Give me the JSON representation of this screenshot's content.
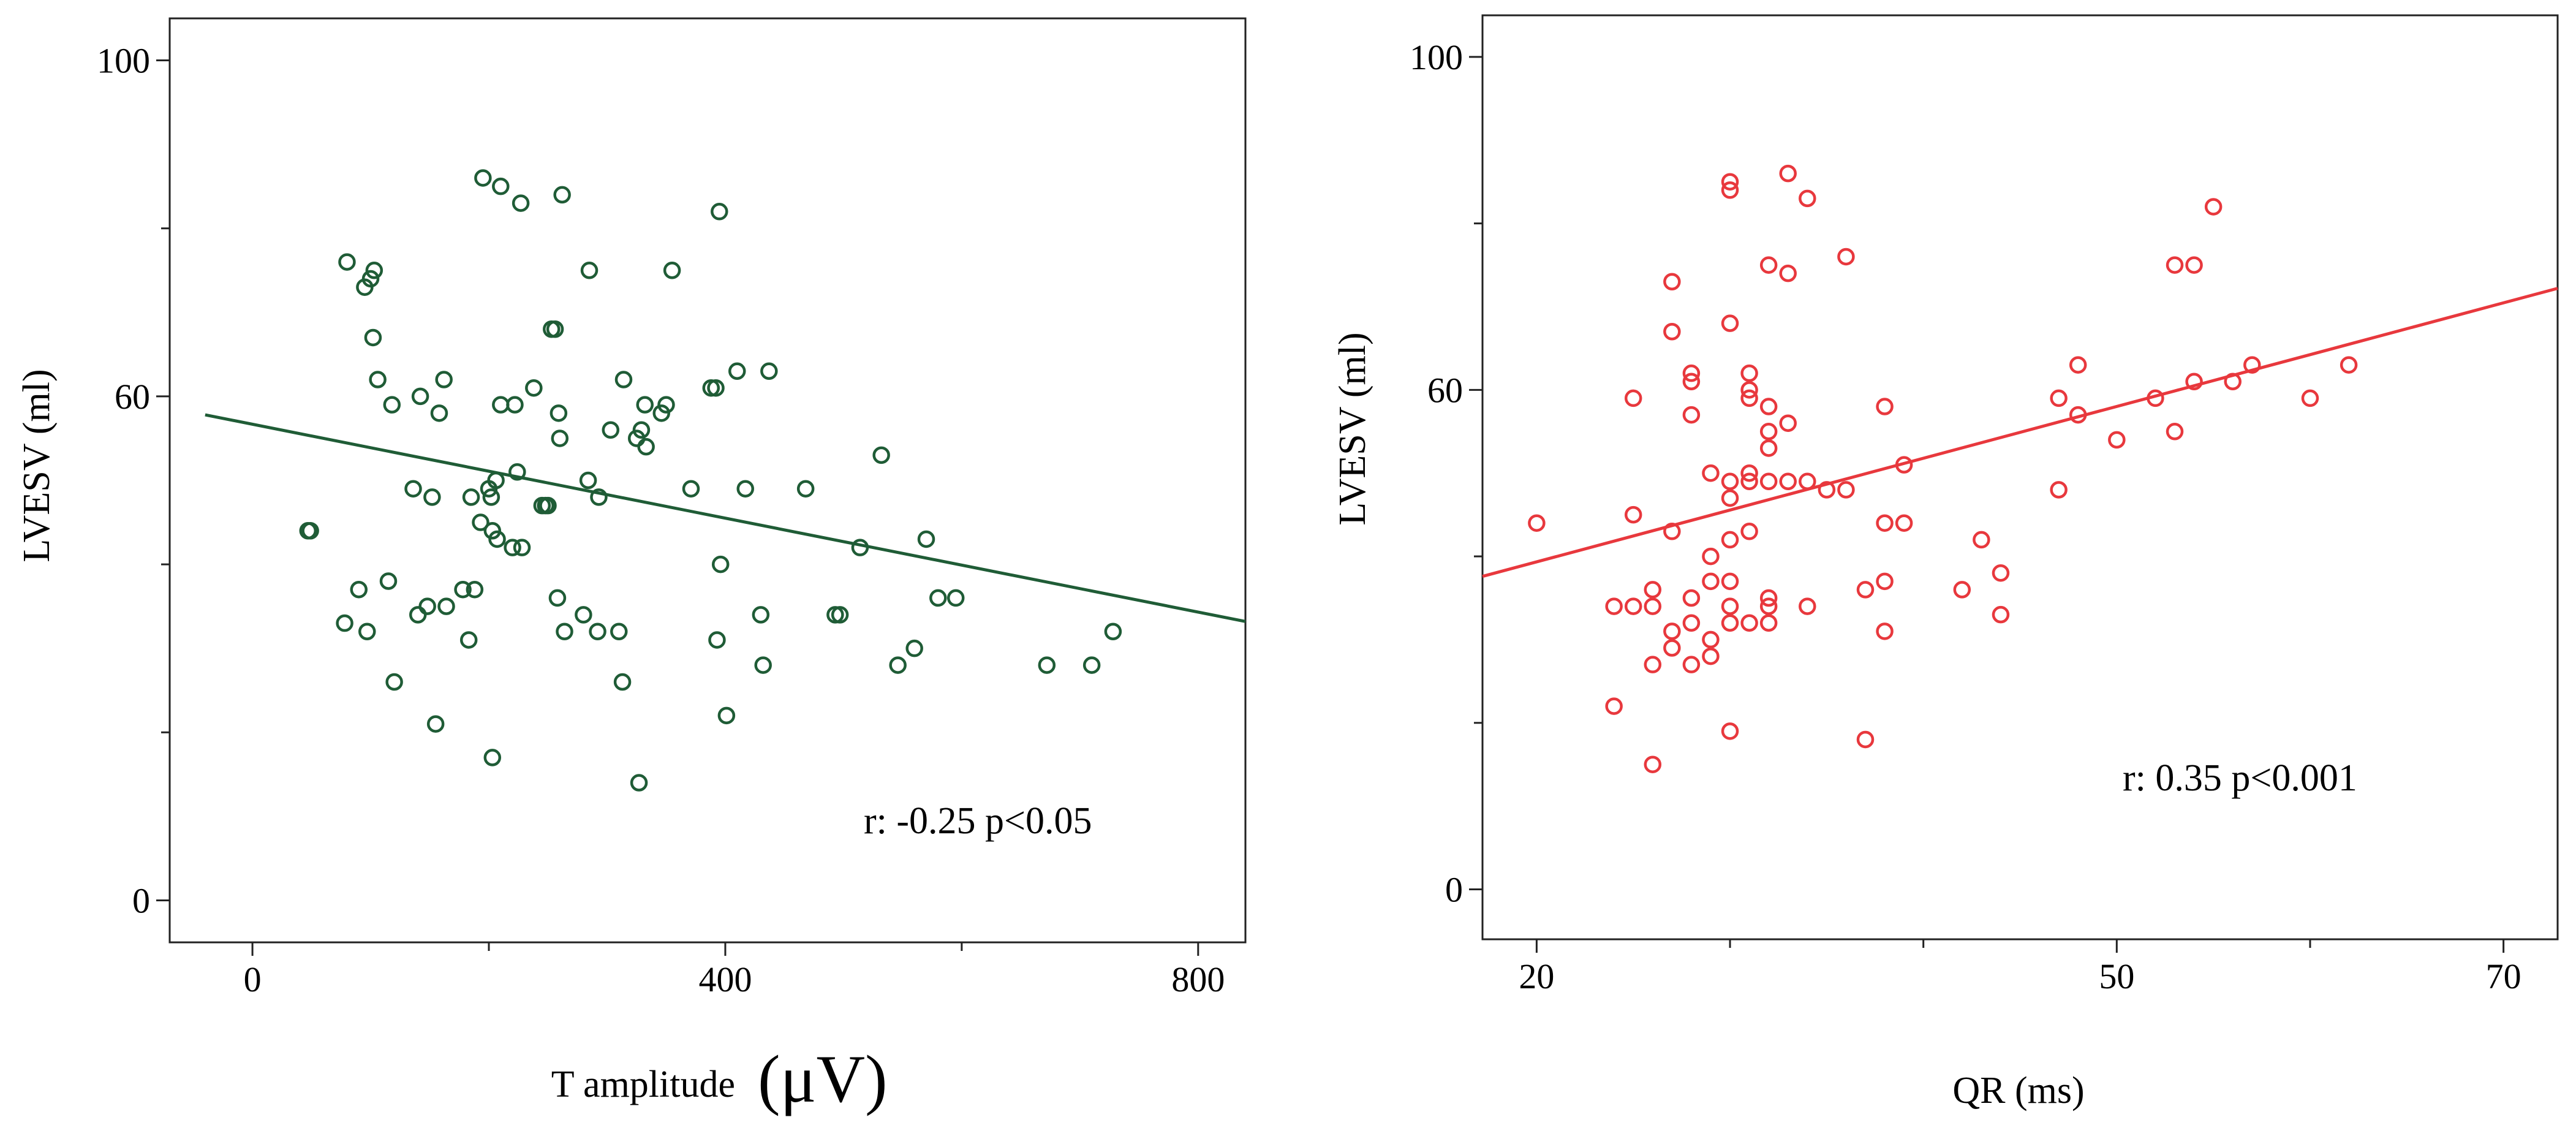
{
  "chart_data": [
    {
      "type": "scatter",
      "title": "",
      "xlabel": "T amplitude",
      "xlabel_unit": "(μV)",
      "ylabel": "LVESV (ml)",
      "xlim": [
        -70,
        840
      ],
      "ylim": [
        -5,
        105
      ],
      "x_ticks": [
        0,
        400,
        800
      ],
      "x_minor_ticks": [
        200,
        600
      ],
      "y_ticks": [
        0,
        60,
        100
      ],
      "y_minor_ticks": [
        20,
        40,
        80
      ],
      "point_color": "#1f5c36",
      "line_color": "#1f5c36",
      "annotation": "r: -0.25  p<0.05",
      "regression": {
        "x": [
          -40,
          840
        ],
        "y": [
          57.8,
          33.2
        ]
      },
      "points": [
        [
          47,
          44
        ],
        [
          49,
          44
        ],
        [
          80,
          76
        ],
        [
          95,
          73
        ],
        [
          100,
          74
        ],
        [
          103,
          75
        ],
        [
          102,
          67
        ],
        [
          106,
          62
        ],
        [
          78,
          33
        ],
        [
          90,
          37
        ],
        [
          97,
          32
        ],
        [
          115,
          38
        ],
        [
          118,
          59
        ],
        [
          120,
          26
        ],
        [
          136,
          49
        ],
        [
          140,
          34
        ],
        [
          142,
          60
        ],
        [
          148,
          35
        ],
        [
          152,
          48
        ],
        [
          155,
          21
        ],
        [
          158,
          58
        ],
        [
          162,
          62
        ],
        [
          164,
          35
        ],
        [
          178,
          37
        ],
        [
          183,
          31
        ],
        [
          185,
          48
        ],
        [
          188,
          37
        ],
        [
          193,
          45
        ],
        [
          195,
          86
        ],
        [
          200,
          49
        ],
        [
          202,
          48
        ],
        [
          203,
          17
        ],
        [
          203,
          44
        ],
        [
          206,
          50
        ],
        [
          207,
          43
        ],
        [
          210,
          85
        ],
        [
          210,
          59
        ],
        [
          220,
          42
        ],
        [
          222,
          59
        ],
        [
          224,
          51
        ],
        [
          227,
          83
        ],
        [
          228,
          42
        ],
        [
          238,
          61
        ],
        [
          245,
          47
        ],
        [
          248,
          47
        ],
        [
          250,
          47
        ],
        [
          253,
          68
        ],
        [
          256,
          68
        ],
        [
          258,
          36
        ],
        [
          259,
          58
        ],
        [
          260,
          55
        ],
        [
          262,
          84
        ],
        [
          264,
          32
        ],
        [
          280,
          34
        ],
        [
          284,
          50
        ],
        [
          285,
          75
        ],
        [
          292,
          32
        ],
        [
          293,
          48
        ],
        [
          303,
          56
        ],
        [
          310,
          32
        ],
        [
          313,
          26
        ],
        [
          314,
          62
        ],
        [
          325,
          55
        ],
        [
          327,
          14
        ],
        [
          329,
          56
        ],
        [
          332,
          59
        ],
        [
          333,
          54
        ],
        [
          346,
          58
        ],
        [
          350,
          59
        ],
        [
          355,
          75
        ],
        [
          371,
          49
        ],
        [
          388,
          61
        ],
        [
          392,
          61
        ],
        [
          393,
          31
        ],
        [
          395,
          82
        ],
        [
          396,
          40
        ],
        [
          401,
          22
        ],
        [
          410,
          63
        ],
        [
          417,
          49
        ],
        [
          430,
          34
        ],
        [
          432,
          28
        ],
        [
          437,
          63
        ],
        [
          468,
          49
        ],
        [
          493,
          34
        ],
        [
          497,
          34
        ],
        [
          514,
          42
        ],
        [
          532,
          53
        ],
        [
          546,
          28
        ],
        [
          560,
          30
        ],
        [
          570,
          43
        ],
        [
          580,
          36
        ],
        [
          595,
          36
        ],
        [
          672,
          28
        ],
        [
          710,
          28
        ],
        [
          728,
          32
        ]
      ]
    },
    {
      "type": "scatter",
      "title": "",
      "xlabel": "QR (ms)",
      "ylabel": "LVESV (ml)",
      "xlim": [
        17.2,
        72.8
      ],
      "ylim": [
        -6,
        105
      ],
      "x_ticks": [
        20,
        50,
        70
      ],
      "x_minor_ticks": [
        30,
        40,
        60
      ],
      "y_ticks": [
        0,
        60,
        100
      ],
      "y_minor_ticks": [
        20,
        40,
        80
      ],
      "point_color": "#e8383d",
      "line_color": "#e8383d",
      "annotation": "r: 0.35   p<0.001",
      "regression": {
        "x": [
          17.2,
          72.8
        ],
        "y": [
          37.6,
          72.2
        ]
      },
      "points": [
        [
          20,
          44
        ],
        [
          24,
          22
        ],
        [
          24,
          34
        ],
        [
          25,
          34
        ],
        [
          25,
          45
        ],
        [
          25,
          59
        ],
        [
          26,
          27
        ],
        [
          26,
          34
        ],
        [
          26,
          15
        ],
        [
          26,
          36
        ],
        [
          27,
          29
        ],
        [
          27,
          31
        ],
        [
          27,
          43
        ],
        [
          27,
          67
        ],
        [
          27,
          73
        ],
        [
          28,
          27
        ],
        [
          28,
          32
        ],
        [
          28,
          35
        ],
        [
          28,
          57
        ],
        [
          28,
          62
        ],
        [
          28,
          61
        ],
        [
          29,
          28
        ],
        [
          29,
          30
        ],
        [
          29,
          37
        ],
        [
          29,
          40
        ],
        [
          29,
          50
        ],
        [
          30,
          19
        ],
        [
          30,
          32
        ],
        [
          30,
          34
        ],
        [
          30,
          37
        ],
        [
          30,
          42
        ],
        [
          30,
          47
        ],
        [
          30,
          49
        ],
        [
          30,
          68
        ],
        [
          30,
          84
        ],
        [
          30,
          85
        ],
        [
          31,
          32
        ],
        [
          31,
          43
        ],
        [
          31,
          49
        ],
        [
          31,
          50
        ],
        [
          31,
          59
        ],
        [
          31,
          60
        ],
        [
          31,
          62
        ],
        [
          32,
          32
        ],
        [
          32,
          34
        ],
        [
          32,
          35
        ],
        [
          32,
          49
        ],
        [
          32,
          53
        ],
        [
          32,
          55
        ],
        [
          32,
          58
        ],
        [
          32,
          75
        ],
        [
          33,
          49
        ],
        [
          33,
          56
        ],
        [
          33,
          74
        ],
        [
          33,
          86
        ],
        [
          34,
          34
        ],
        [
          34,
          49
        ],
        [
          34,
          83
        ],
        [
          35,
          48
        ],
        [
          36,
          48
        ],
        [
          36,
          76
        ],
        [
          37,
          18
        ],
        [
          37,
          36
        ],
        [
          38,
          31
        ],
        [
          38,
          37
        ],
        [
          38,
          44
        ],
        [
          38,
          58
        ],
        [
          39,
          44
        ],
        [
          39,
          51
        ],
        [
          42,
          36
        ],
        [
          43,
          42
        ],
        [
          44,
          33
        ],
        [
          44,
          38
        ],
        [
          47,
          48
        ],
        [
          47,
          59
        ],
        [
          48,
          57
        ],
        [
          48,
          63
        ],
        [
          50,
          54
        ],
        [
          52,
          59
        ],
        [
          53,
          55
        ],
        [
          53,
          75
        ],
        [
          54,
          75
        ],
        [
          54,
          61
        ],
        [
          55,
          82
        ],
        [
          56,
          61
        ],
        [
          57,
          63
        ],
        [
          60,
          59
        ],
        [
          62,
          63
        ]
      ]
    }
  ]
}
